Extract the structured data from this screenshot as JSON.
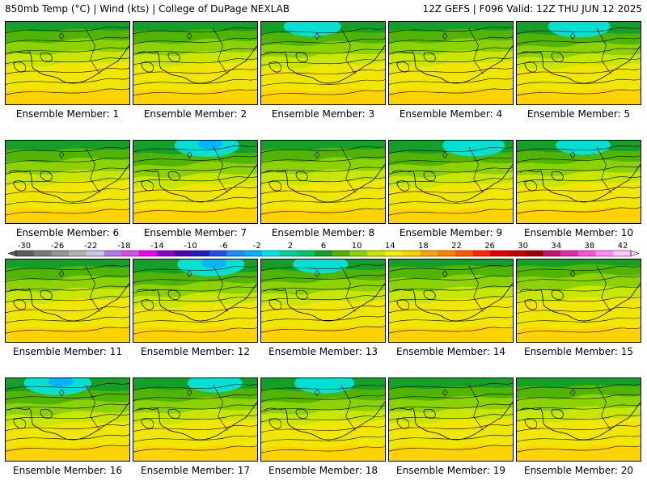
{
  "header": {
    "left": "850mb Temp (°C) | Wind (kts) | College of DuPage NEXLAB",
    "right": "12Z GEFS | F096 Valid: 12Z THU JUN 12 2025"
  },
  "caption_prefix": "Ensemble Member: ",
  "members": [
    {
      "id": 1,
      "label": "Ensemble Member: 1",
      "cold": 0.35
    },
    {
      "id": 2,
      "label": "Ensemble Member: 2",
      "cold": 0.4
    },
    {
      "id": 3,
      "label": "Ensemble Member: 3",
      "cold": 0.6
    },
    {
      "id": 4,
      "label": "Ensemble Member: 4",
      "cold": 0.35
    },
    {
      "id": 5,
      "label": "Ensemble Member: 5",
      "cold": 0.7
    },
    {
      "id": 6,
      "label": "Ensemble Member: 6",
      "cold": 0.4
    },
    {
      "id": 7,
      "label": "Ensemble Member: 7",
      "cold": 0.75
    },
    {
      "id": 8,
      "label": "Ensemble Member: 8",
      "cold": 0.35
    },
    {
      "id": 9,
      "label": "Ensemble Member: 9",
      "cold": 0.7
    },
    {
      "id": 10,
      "label": "Ensemble Member: 10",
      "cold": 0.55
    },
    {
      "id": 11,
      "label": "Ensemble Member: 11",
      "cold": 0.3
    },
    {
      "id": 12,
      "label": "Ensemble Member: 12",
      "cold": 0.8
    },
    {
      "id": 13,
      "label": "Ensemble Member: 13",
      "cold": 0.55
    },
    {
      "id": 14,
      "label": "Ensemble Member: 14",
      "cold": 0.2
    },
    {
      "id": 15,
      "label": "Ensemble Member: 15",
      "cold": 0.1
    },
    {
      "id": 16,
      "label": "Ensemble Member: 16",
      "cold": 0.8
    },
    {
      "id": 17,
      "label": "Ensemble Member: 17",
      "cold": 0.55
    },
    {
      "id": 18,
      "label": "Ensemble Member: 18",
      "cold": 0.65
    },
    {
      "id": 19,
      "label": "Ensemble Member: 19",
      "cold": 0.45
    },
    {
      "id": 20,
      "label": "Ensemble Member: 20",
      "cold": 0.3
    }
  ],
  "colorbar": {
    "ticks": [
      "-30",
      "-26",
      "-22",
      "-18",
      "-14",
      "-10",
      "-6",
      "-2",
      "2",
      "6",
      "10",
      "14",
      "18",
      "22",
      "26",
      "30",
      "34",
      "38",
      "42"
    ],
    "colors": [
      "#5a5a5a",
      "#787878",
      "#969696",
      "#b4b4b4",
      "#c8c8e6",
      "#b478e6",
      "#d250e6",
      "#f000f0",
      "#8c00c8",
      "#5000b4",
      "#1e1ec8",
      "#1e50f0",
      "#1e8cff",
      "#00b4ff",
      "#00e6e6",
      "#00d296",
      "#00c864",
      "#14a028",
      "#50b400",
      "#8cd200",
      "#c8e600",
      "#f0f000",
      "#ffd200",
      "#ffa500",
      "#ff8200",
      "#ff5a00",
      "#ff2800",
      "#e60000",
      "#c80000",
      "#a00000",
      "#c8146e",
      "#e628aa",
      "#ff50dc",
      "#ff8cf0",
      "#ffc8ff"
    ]
  }
}
